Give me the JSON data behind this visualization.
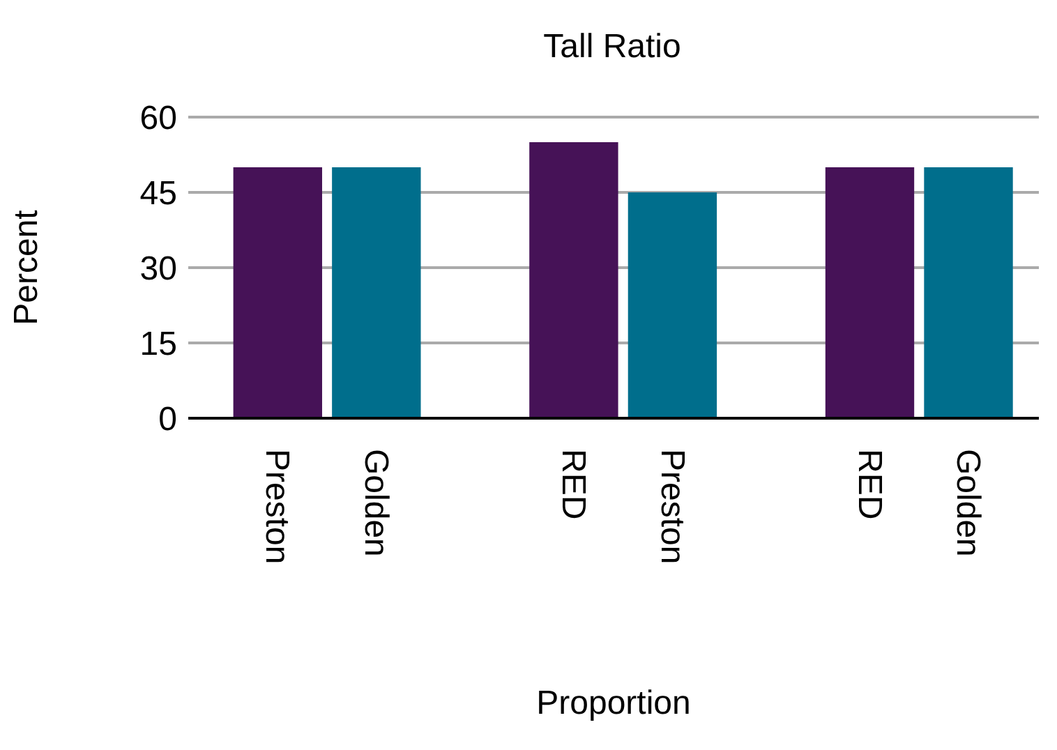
{
  "chart_data": {
    "type": "bar",
    "title": "Tall Ratio",
    "xlabel": "Proportion",
    "ylabel": "Percent",
    "categories": [
      "Preston",
      "Golden",
      "RED",
      "Preston",
      "RED",
      "Golden"
    ],
    "values": [
      50,
      50,
      55,
      45,
      50,
      50
    ],
    "colors": [
      "#461257",
      "#006e8c",
      "#461257",
      "#006e8c",
      "#461257",
      "#006e8c"
    ],
    "ylim": [
      0,
      60
    ],
    "yticks": [
      0,
      15,
      30,
      45,
      60
    ],
    "grid": "y"
  }
}
